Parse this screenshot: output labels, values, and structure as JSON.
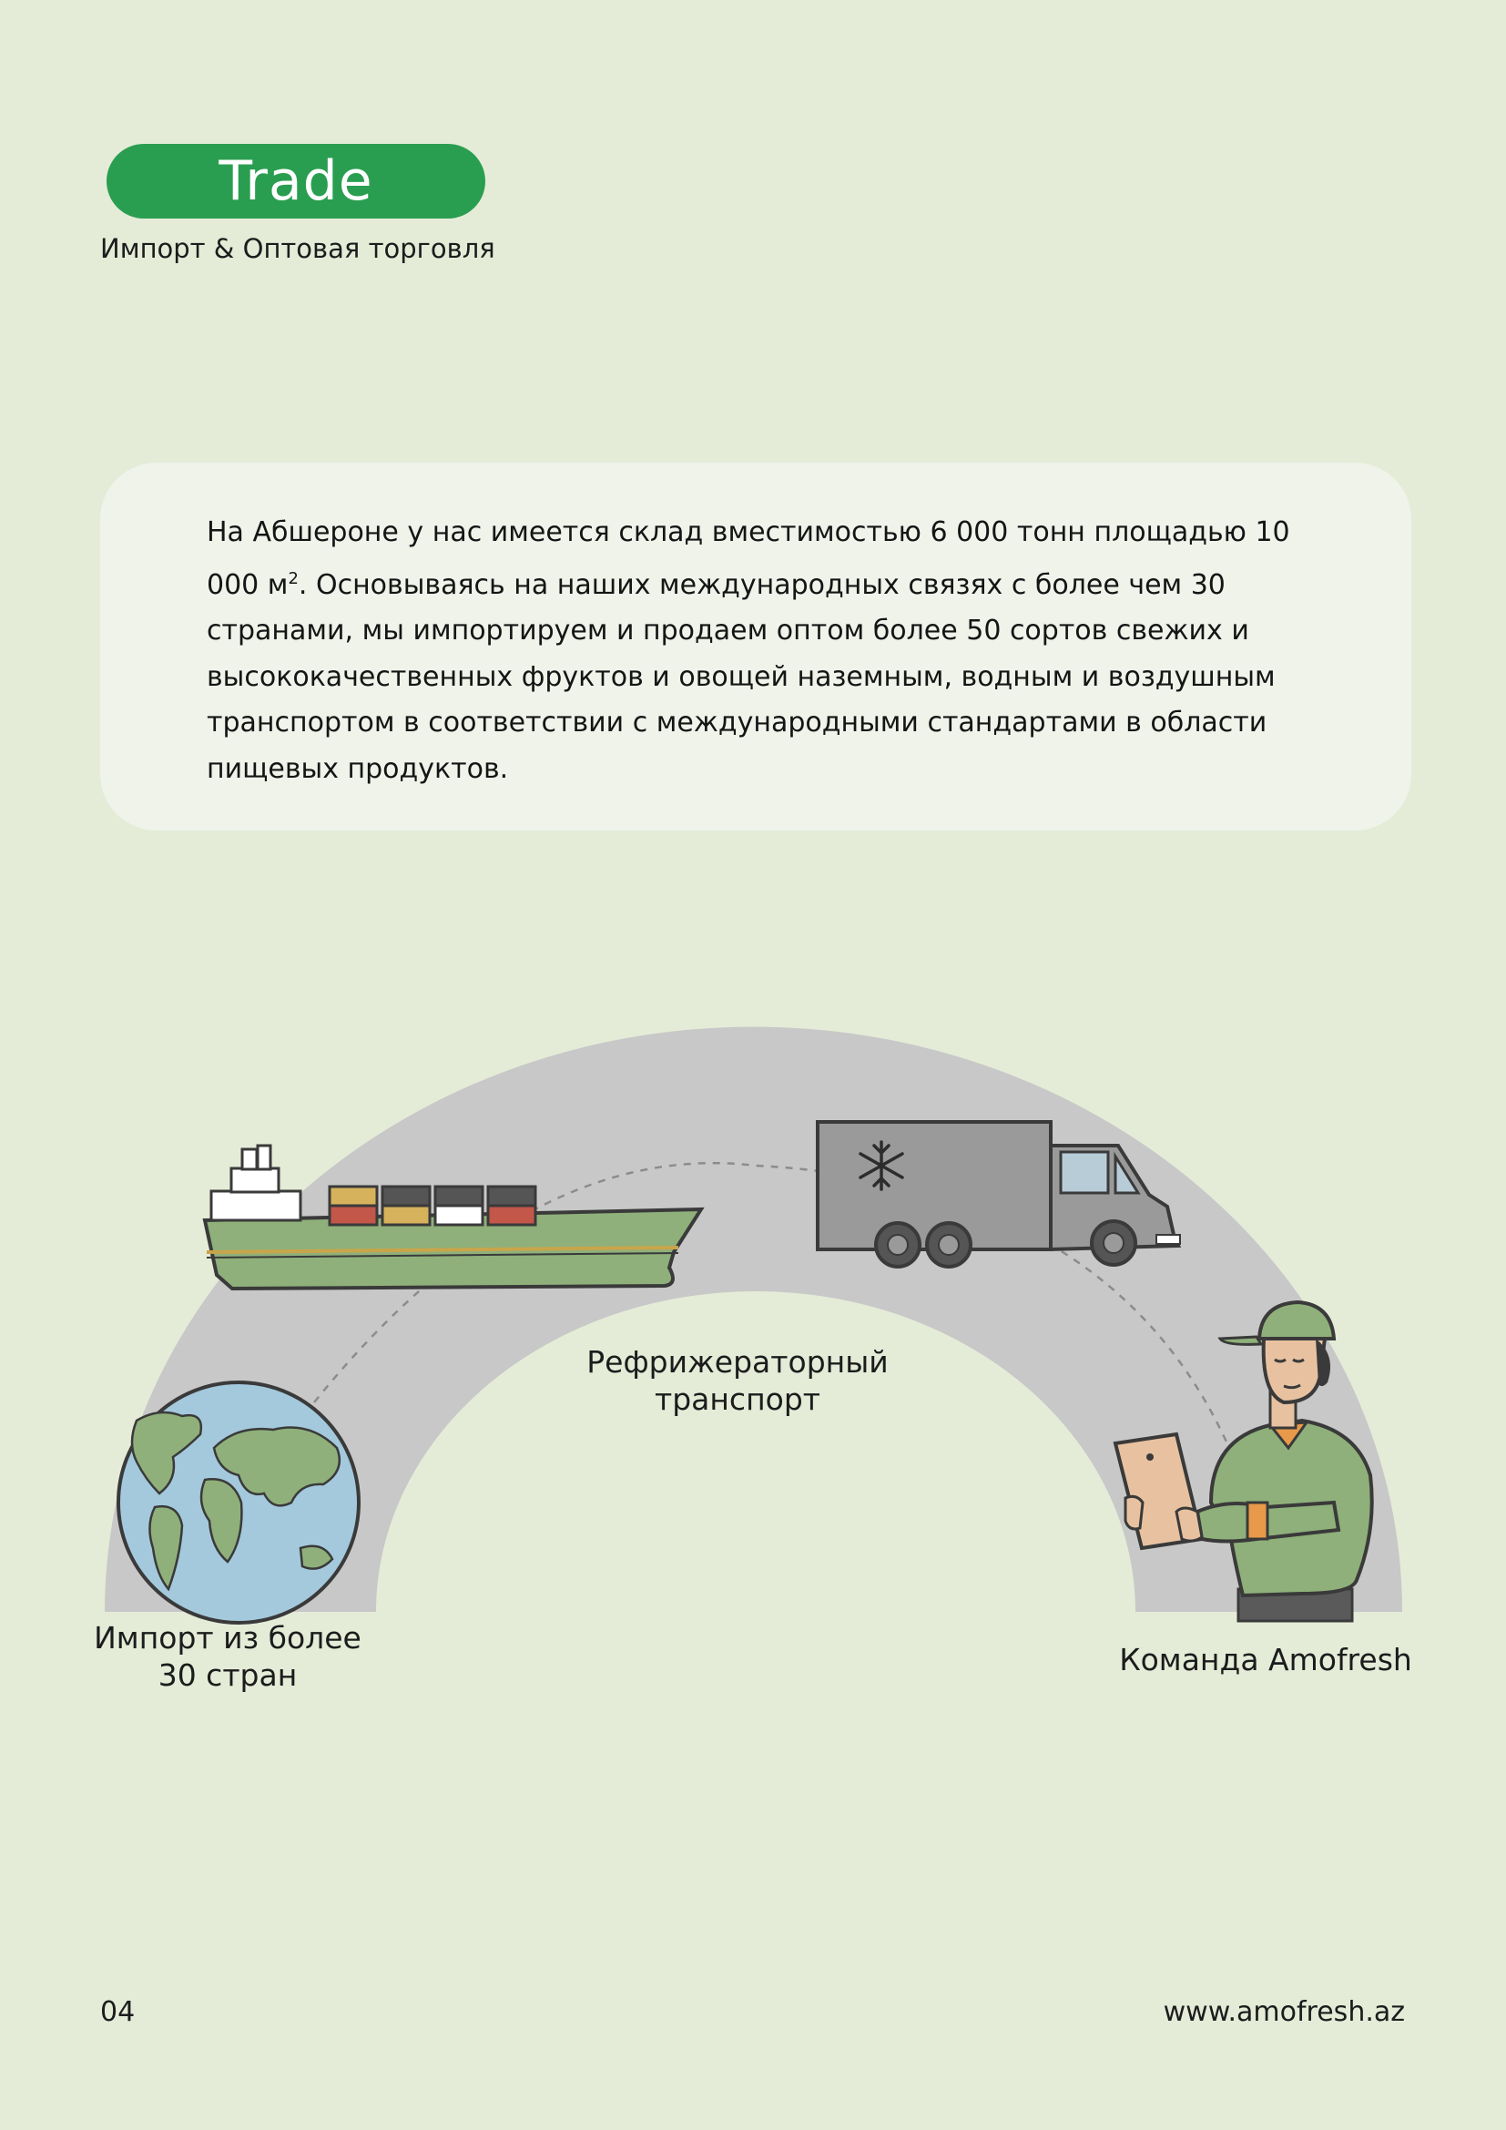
{
  "header": {
    "badge": "Trade",
    "subtitle": "Импорт & Оптовая торговля"
  },
  "intro": {
    "text_before_sup": "На Абшероне у нас имеется склад вместимостью 6 000 тонн площадью 10 000 м",
    "sup": "2",
    "text_after_sup": ". Основываясь на наших международных связях с более чем 30 странами, мы импортируем и продаем оптом более 50 сортов свежих и высококачественных фруктов и овощей наземным, водным и воздушным транспортом в соответствии с международными стандартами в области пищевых продуктов."
  },
  "diagram": {
    "arc_color": "#c8c8c8",
    "labels": {
      "globe": "Импорт из более\n30 стран",
      "transport": "Рефрижераторный\nтранспорт",
      "team": "Команда Amofresh"
    },
    "icons": [
      "globe-icon",
      "ship-icon",
      "refrigerated-truck-icon",
      "worker-with-tablet-icon"
    ]
  },
  "footer": {
    "page_number": "04",
    "website": "www.amofresh.az"
  }
}
